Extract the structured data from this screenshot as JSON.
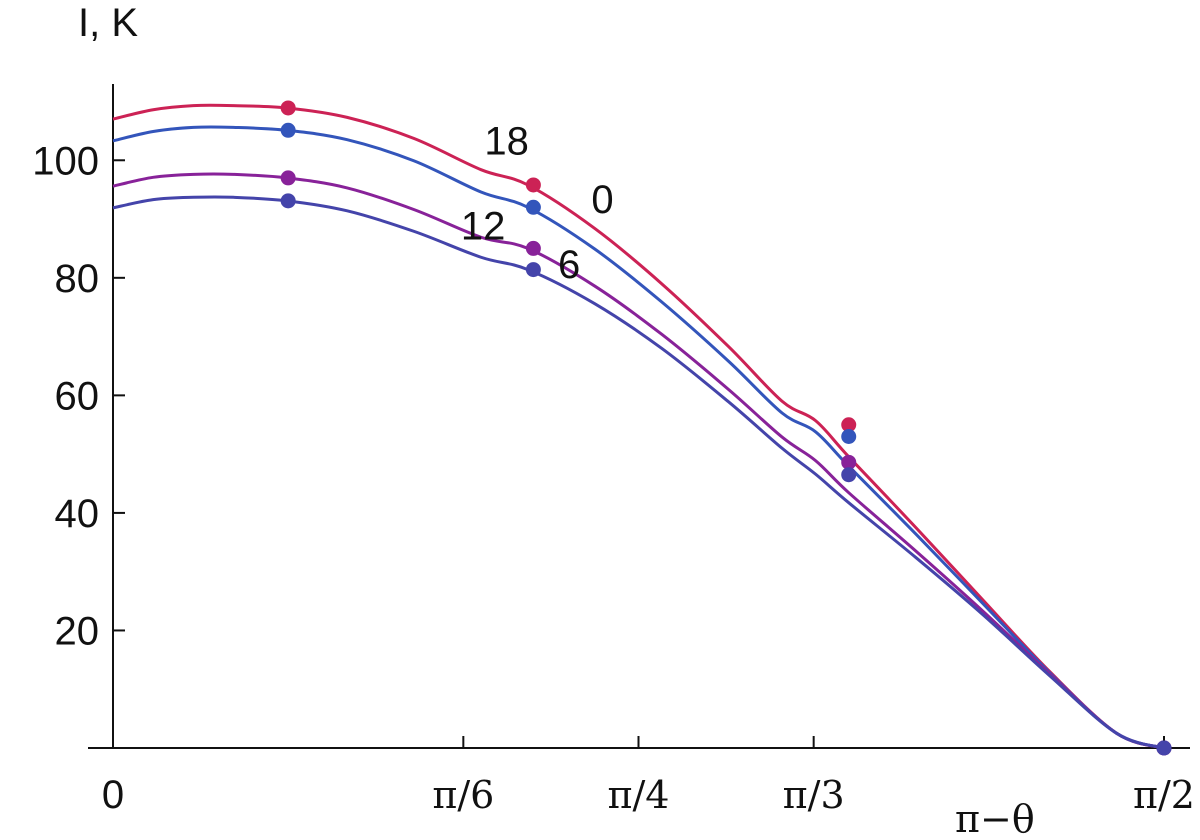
{
  "chart_data": {
    "type": "line",
    "ylabel": "I, K",
    "xlabel": "π−θ",
    "xlim": [
      0,
      1.5708
    ],
    "ylim": [
      0,
      110
    ],
    "grid": false,
    "x_ticks": [
      {
        "value": 0,
        "label": "0"
      },
      {
        "value": 0.5236,
        "label": "π/6"
      },
      {
        "value": 0.7854,
        "label": "π/4"
      },
      {
        "value": 1.0472,
        "label": "π/3"
      },
      {
        "value": 1.5708,
        "label": "π/2"
      }
    ],
    "y_ticks": [
      {
        "value": 20,
        "label": "20"
      },
      {
        "value": 40,
        "label": "40"
      },
      {
        "value": 60,
        "label": "60"
      },
      {
        "value": 80,
        "label": "80"
      },
      {
        "value": 100,
        "label": "100"
      }
    ],
    "x": [
      0,
      0.06,
      0.12,
      0.18,
      0.26,
      0.35,
      0.45,
      0.55,
      0.62,
      0.72,
      0.82,
      0.92,
      1.0,
      1.05,
      1.1,
      1.2,
      1.3,
      1.4,
      1.5,
      1.5708
    ],
    "marker_x": [
      0.2618,
      0.6283,
      1.0996,
      1.5708
    ],
    "series": [
      {
        "name": "18",
        "color": "#cc2255",
        "label_x": 0.555,
        "label_y": 101,
        "values": [
          107.0,
          108.6,
          109.3,
          109.3,
          108.9,
          107.3,
          103.7,
          98.4,
          95.8,
          88.4,
          79.0,
          68.3,
          59.0,
          55.7,
          49.5,
          37.5,
          25.2,
          13.0,
          2.5,
          0
        ],
        "markers": [
          108.9,
          95.8,
          55.0,
          0
        ]
      },
      {
        "name": "0",
        "color": "#3355bb",
        "label_x": 0.715,
        "label_y": 91,
        "values": [
          103.3,
          104.9,
          105.6,
          105.6,
          105.1,
          103.5,
          99.9,
          94.6,
          92.0,
          84.9,
          75.9,
          65.8,
          57.0,
          53.8,
          47.9,
          36.4,
          24.6,
          12.8,
          2.5,
          0
        ],
        "markers": [
          105.1,
          92.0,
          53.0,
          0
        ]
      },
      {
        "name": "12",
        "color": "#882299",
        "label_x": 0.52,
        "label_y": 86.5,
        "values": [
          95.6,
          97.1,
          97.6,
          97.6,
          97.0,
          95.3,
          91.6,
          86.9,
          85.0,
          78.6,
          70.4,
          61.0,
          52.9,
          48.9,
          43.4,
          33.5,
          23.3,
          12.6,
          2.5,
          0
        ],
        "markers": [
          97.0,
          85.0,
          48.6,
          0
        ]
      },
      {
        "name": "6",
        "color": "#4444aa",
        "label_x": 0.665,
        "label_y": 80,
        "values": [
          91.9,
          93.3,
          93.7,
          93.7,
          93.1,
          91.4,
          87.9,
          83.5,
          81.4,
          75.6,
          68.0,
          58.9,
          51.0,
          46.6,
          41.7,
          32.4,
          22.7,
          12.3,
          2.5,
          0
        ],
        "markers": [
          93.1,
          81.4,
          46.5,
          0
        ]
      }
    ]
  }
}
